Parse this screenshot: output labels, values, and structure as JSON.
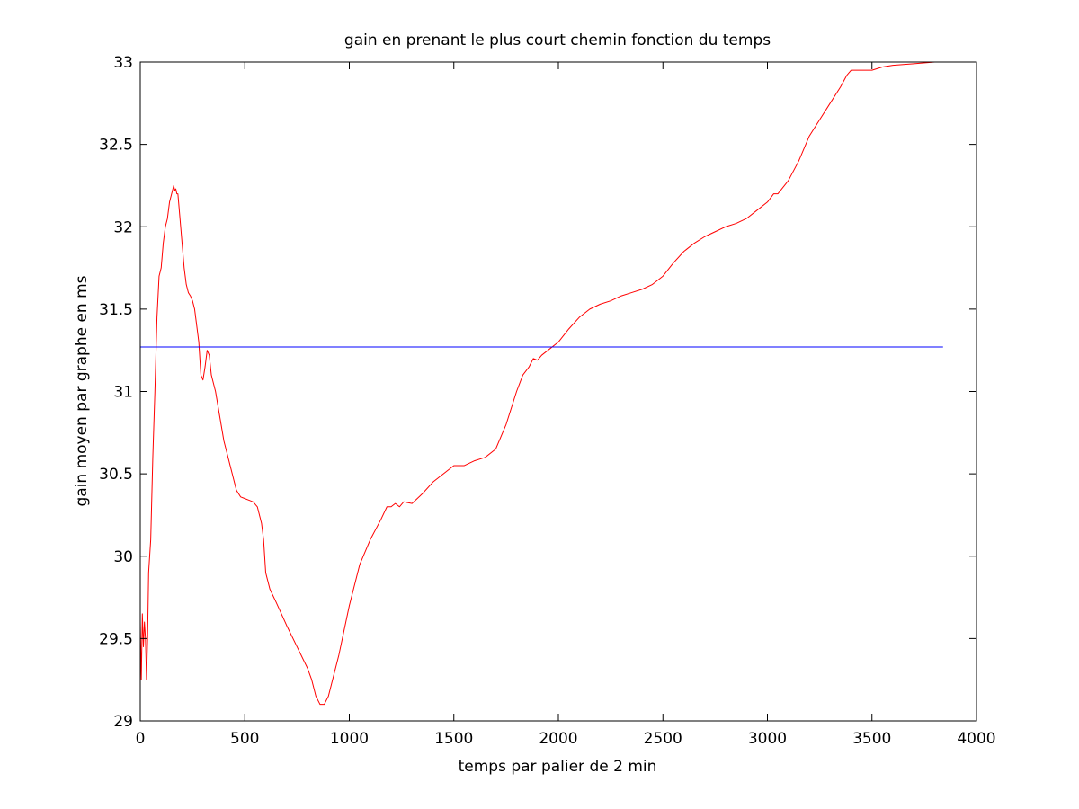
{
  "chart_data": {
    "type": "line",
    "title": "gain en prenant le plus court chemin fonction du temps",
    "xlabel": "temps par palier de 2 min",
    "ylabel": "gain moyen par graphe en ms",
    "xlim": [
      0,
      4000
    ],
    "ylim": [
      29,
      33
    ],
    "xticks": [
      0,
      500,
      1000,
      1500,
      2000,
      2500,
      3000,
      3500,
      4000
    ],
    "yticks": [
      29,
      29.5,
      30,
      30.5,
      31,
      31.5,
      32,
      32.5,
      33
    ],
    "xtick_labels": [
      "0",
      "500",
      "1000",
      "1500",
      "2000",
      "2500",
      "3000",
      "3500",
      "4000"
    ],
    "ytick_labels": [
      "29",
      "29.5",
      "30",
      "30.5",
      "31",
      "31.5",
      "32",
      "32.5",
      "33"
    ],
    "grid": false,
    "legend": "none",
    "series": [
      {
        "color": "#ff0000",
        "x": [
          0,
          5,
          10,
          15,
          20,
          25,
          30,
          35,
          40,
          50,
          60,
          70,
          80,
          90,
          100,
          110,
          120,
          130,
          140,
          150,
          160,
          165,
          170,
          175,
          180,
          190,
          200,
          210,
          220,
          230,
          240,
          250,
          260,
          270,
          280,
          290,
          300,
          310,
          320,
          330,
          340,
          350,
          360,
          380,
          400,
          420,
          440,
          460,
          480,
          500,
          520,
          540,
          560,
          580,
          590,
          600,
          620,
          650,
          700,
          750,
          800,
          820,
          840,
          860,
          880,
          900,
          950,
          1000,
          1050,
          1100,
          1150,
          1180,
          1200,
          1220,
          1240,
          1260,
          1300,
          1350,
          1400,
          1450,
          1500,
          1550,
          1600,
          1650,
          1700,
          1750,
          1800,
          1830,
          1860,
          1880,
          1900,
          1920,
          1950,
          2000,
          2050,
          2100,
          2150,
          2200,
          2250,
          2300,
          2350,
          2400,
          2450,
          2500,
          2550,
          2600,
          2650,
          2700,
          2750,
          2800,
          2850,
          2900,
          2950,
          3000,
          3030,
          3050,
          3100,
          3150,
          3200,
          3250,
          3300,
          3350,
          3380,
          3400,
          3450,
          3500,
          3550,
          3600,
          3700,
          3800,
          3840
        ],
        "values": [
          29.6,
          29.25,
          29.65,
          29.45,
          29.6,
          29.5,
          29.25,
          29.5,
          29.9,
          30.1,
          30.6,
          31.0,
          31.45,
          31.7,
          31.75,
          31.9,
          32.0,
          32.05,
          32.15,
          32.2,
          32.25,
          32.22,
          32.23,
          32.2,
          32.2,
          32.05,
          31.9,
          31.75,
          31.65,
          31.6,
          31.58,
          31.55,
          31.5,
          31.4,
          31.3,
          31.1,
          31.07,
          31.15,
          31.25,
          31.22,
          31.1,
          31.05,
          31.0,
          30.85,
          30.7,
          30.6,
          30.5,
          30.4,
          30.36,
          30.35,
          30.34,
          30.33,
          30.3,
          30.2,
          30.1,
          29.9,
          29.8,
          29.72,
          29.58,
          29.45,
          29.32,
          29.25,
          29.15,
          29.1,
          29.1,
          29.15,
          29.4,
          29.7,
          29.95,
          30.1,
          30.22,
          30.3,
          30.3,
          30.32,
          30.3,
          30.33,
          30.32,
          30.38,
          30.45,
          30.5,
          30.55,
          30.55,
          30.58,
          30.6,
          30.65,
          30.8,
          31.0,
          31.1,
          31.15,
          31.2,
          31.19,
          31.22,
          31.25,
          31.3,
          31.38,
          31.45,
          31.5,
          31.53,
          31.55,
          31.58,
          31.6,
          31.62,
          31.65,
          31.7,
          31.78,
          31.85,
          31.9,
          31.94,
          31.97,
          32.0,
          32.02,
          32.05,
          32.1,
          32.15,
          32.2,
          32.2,
          32.28,
          32.4,
          32.55,
          32.65,
          32.75,
          32.85,
          32.92,
          32.95,
          32.95,
          32.95,
          32.97,
          32.98,
          32.99,
          33.0,
          33.0
        ]
      },
      {
        "color": "#0000ff",
        "x": [
          0,
          3840
        ],
        "values": [
          31.27,
          31.27
        ]
      }
    ]
  }
}
